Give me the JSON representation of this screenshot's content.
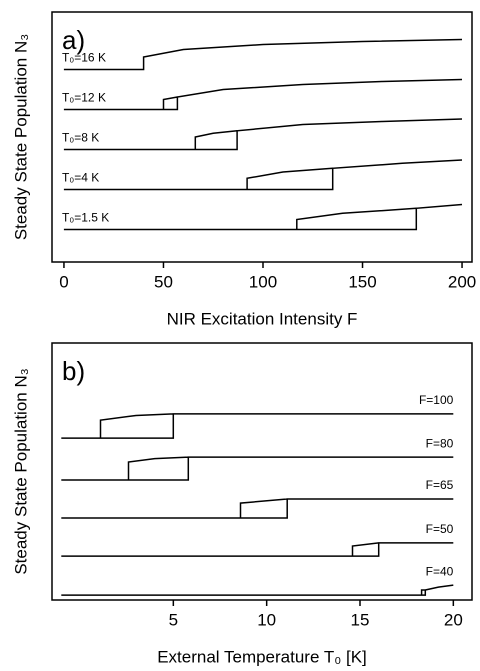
{
  "chart_data": [
    {
      "type": "line",
      "panel_label": "a)",
      "x_label": "NIR Excitation Intensity F",
      "y_label": "Steady State Population N₃",
      "xlim": [
        -6,
        205
      ],
      "ylim": [
        0,
        10
      ],
      "xticks": [
        0,
        50,
        100,
        150,
        200
      ],
      "series": [
        {
          "name": "T₀=16 K",
          "color": "#000000",
          "x": [
            0,
            40,
            40,
            60,
            100,
            150,
            200
          ],
          "values": [
            7.7,
            7.7,
            8.2,
            8.5,
            8.7,
            8.82,
            8.9
          ]
        },
        {
          "name": "T₀=12 K",
          "color": "#000000",
          "x": [
            0,
            57,
            57,
            80,
            120,
            160,
            200,
            null,
            50,
            50,
            57
          ],
          "values": [
            6.1,
            6.1,
            6.6,
            6.9,
            7.1,
            7.22,
            7.3,
            null,
            6.1,
            6.5,
            6.6
          ]
        },
        {
          "name": "T₀=8 K",
          "color": "#000000",
          "x": [
            0,
            87,
            87,
            120,
            160,
            200,
            null,
            66,
            66,
            75,
            87
          ],
          "values": [
            4.5,
            4.5,
            5.25,
            5.5,
            5.62,
            5.72,
            null,
            4.5,
            5.0,
            5.15,
            5.25
          ]
        },
        {
          "name": "T₀=4 K",
          "color": "#000000",
          "x": [
            0,
            135,
            135,
            170,
            200,
            null,
            92,
            92,
            110,
            135
          ],
          "values": [
            2.9,
            2.9,
            3.75,
            3.95,
            4.08,
            null,
            2.9,
            3.35,
            3.6,
            3.75
          ]
        },
        {
          "name": "T₀=1.5 K",
          "color": "#000000",
          "x": [
            0,
            177,
            177,
            200,
            null,
            117,
            117,
            140,
            177
          ],
          "values": [
            1.3,
            1.3,
            2.15,
            2.3,
            null,
            1.3,
            1.7,
            1.95,
            2.15
          ]
        }
      ]
    },
    {
      "type": "line",
      "panel_label": "b)",
      "x_label": "External Temperature T₀ [K]",
      "y_label": "Steady State Population N₃",
      "xlim": [
        -1.5,
        21
      ],
      "ylim": [
        0,
        10
      ],
      "xticks": [
        5,
        10,
        15,
        20
      ],
      "series": [
        {
          "name": "F=100",
          "color": "#000000",
          "x": [
            -1,
            5,
            5,
            20,
            null,
            1.1,
            1.1,
            3,
            5
          ],
          "values": [
            6.3,
            6.3,
            7.24,
            7.24,
            null,
            6.3,
            7.0,
            7.18,
            7.24
          ]
        },
        {
          "name": "F=80",
          "color": "#000000",
          "x": [
            -1,
            5.8,
            5.8,
            20,
            null,
            2.6,
            2.6,
            4,
            5.8
          ],
          "values": [
            4.67,
            4.67,
            5.56,
            5.56,
            null,
            4.67,
            5.37,
            5.5,
            5.56
          ]
        },
        {
          "name": "F=65",
          "color": "#000000",
          "x": [
            -1,
            11.1,
            11.1,
            20,
            null,
            8.6,
            8.6,
            11.1
          ],
          "values": [
            3.19,
            3.19,
            3.93,
            3.93,
            null,
            3.19,
            3.77,
            3.93
          ]
        },
        {
          "name": "F=50",
          "color": "#000000",
          "x": [
            -1,
            16,
            16,
            20,
            null,
            14.6,
            14.6,
            16
          ],
          "values": [
            1.71,
            1.71,
            2.22,
            2.22,
            null,
            1.71,
            2.1,
            2.22
          ]
        },
        {
          "name": "F=40",
          "color": "#000000",
          "x": [
            -1,
            18.5,
            18.5,
            19.2,
            20,
            null,
            18.3,
            18.3,
            18.5
          ],
          "values": [
            0.19,
            0.19,
            0.39,
            0.5,
            0.58,
            null,
            0.19,
            0.39,
            0.39
          ]
        }
      ]
    }
  ]
}
